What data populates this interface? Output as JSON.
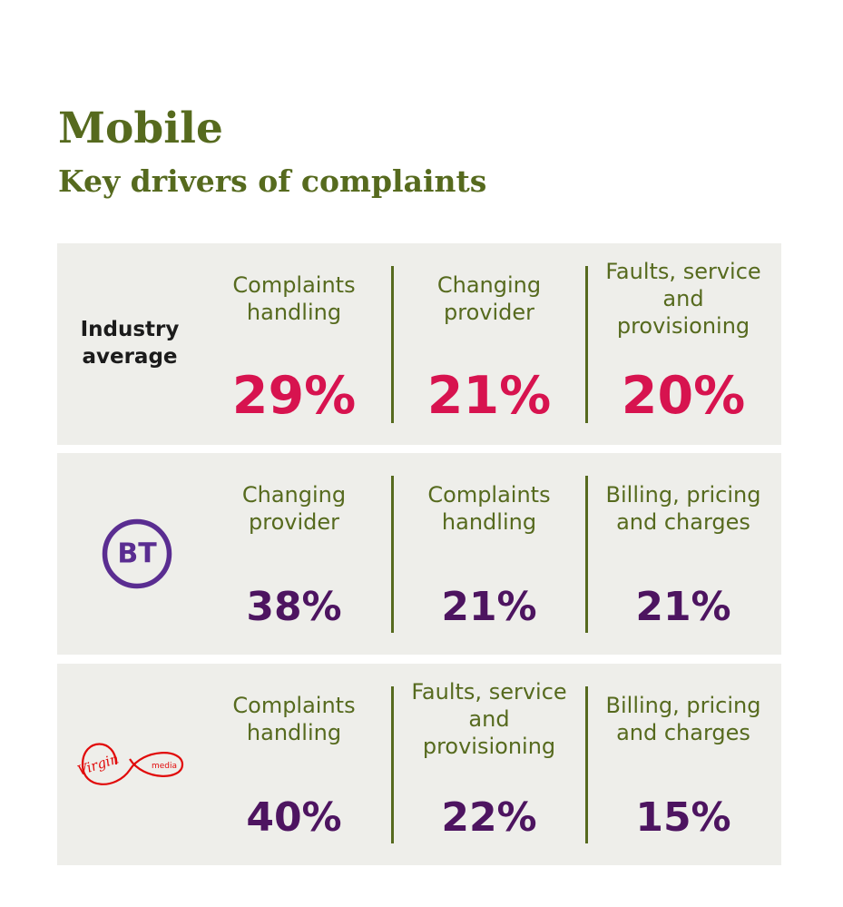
{
  "header": {
    "title": "Mobile",
    "subtitle": "Key drivers of complaints"
  },
  "colors": {
    "accent_green": "#566a1e",
    "industry_value": "#d7134f",
    "provider_value": "#4d1460",
    "bt_purple": "#5a2d91",
    "virgin_red": "#e10a0a",
    "panel_bg": "#eeeeea"
  },
  "chart_data": {
    "type": "table",
    "title": "Mobile",
    "subtitle": "Key drivers of complaints",
    "rows": [
      {
        "provider": "Industry average",
        "logo": "text-label",
        "drivers": [
          {
            "label": "Complaints handling",
            "value": 29,
            "display": "29%"
          },
          {
            "label": "Changing provider",
            "value": 21,
            "display": "21%"
          },
          {
            "label": "Faults, service and provisioning",
            "value": 20,
            "display": "20%"
          }
        ]
      },
      {
        "provider": "BT",
        "logo": "bt-logo-icon",
        "logo_text": "BT",
        "drivers": [
          {
            "label": "Changing provider",
            "value": 38,
            "display": "38%"
          },
          {
            "label": "Complaints handling",
            "value": 21,
            "display": "21%"
          },
          {
            "label": "Billing, pricing and charges",
            "value": 21,
            "display": "21%"
          }
        ]
      },
      {
        "provider": "Virgin Media",
        "logo": "virgin-media-logo-icon",
        "logo_text_primary": "Virgin",
        "logo_text_secondary": "media",
        "drivers": [
          {
            "label": "Complaints handling",
            "value": 40,
            "display": "40%"
          },
          {
            "label": "Faults, service and provisioning",
            "value": 22,
            "display": "22%"
          },
          {
            "label": "Billing, pricing and charges",
            "value": 15,
            "display": "15%"
          }
        ]
      }
    ]
  }
}
